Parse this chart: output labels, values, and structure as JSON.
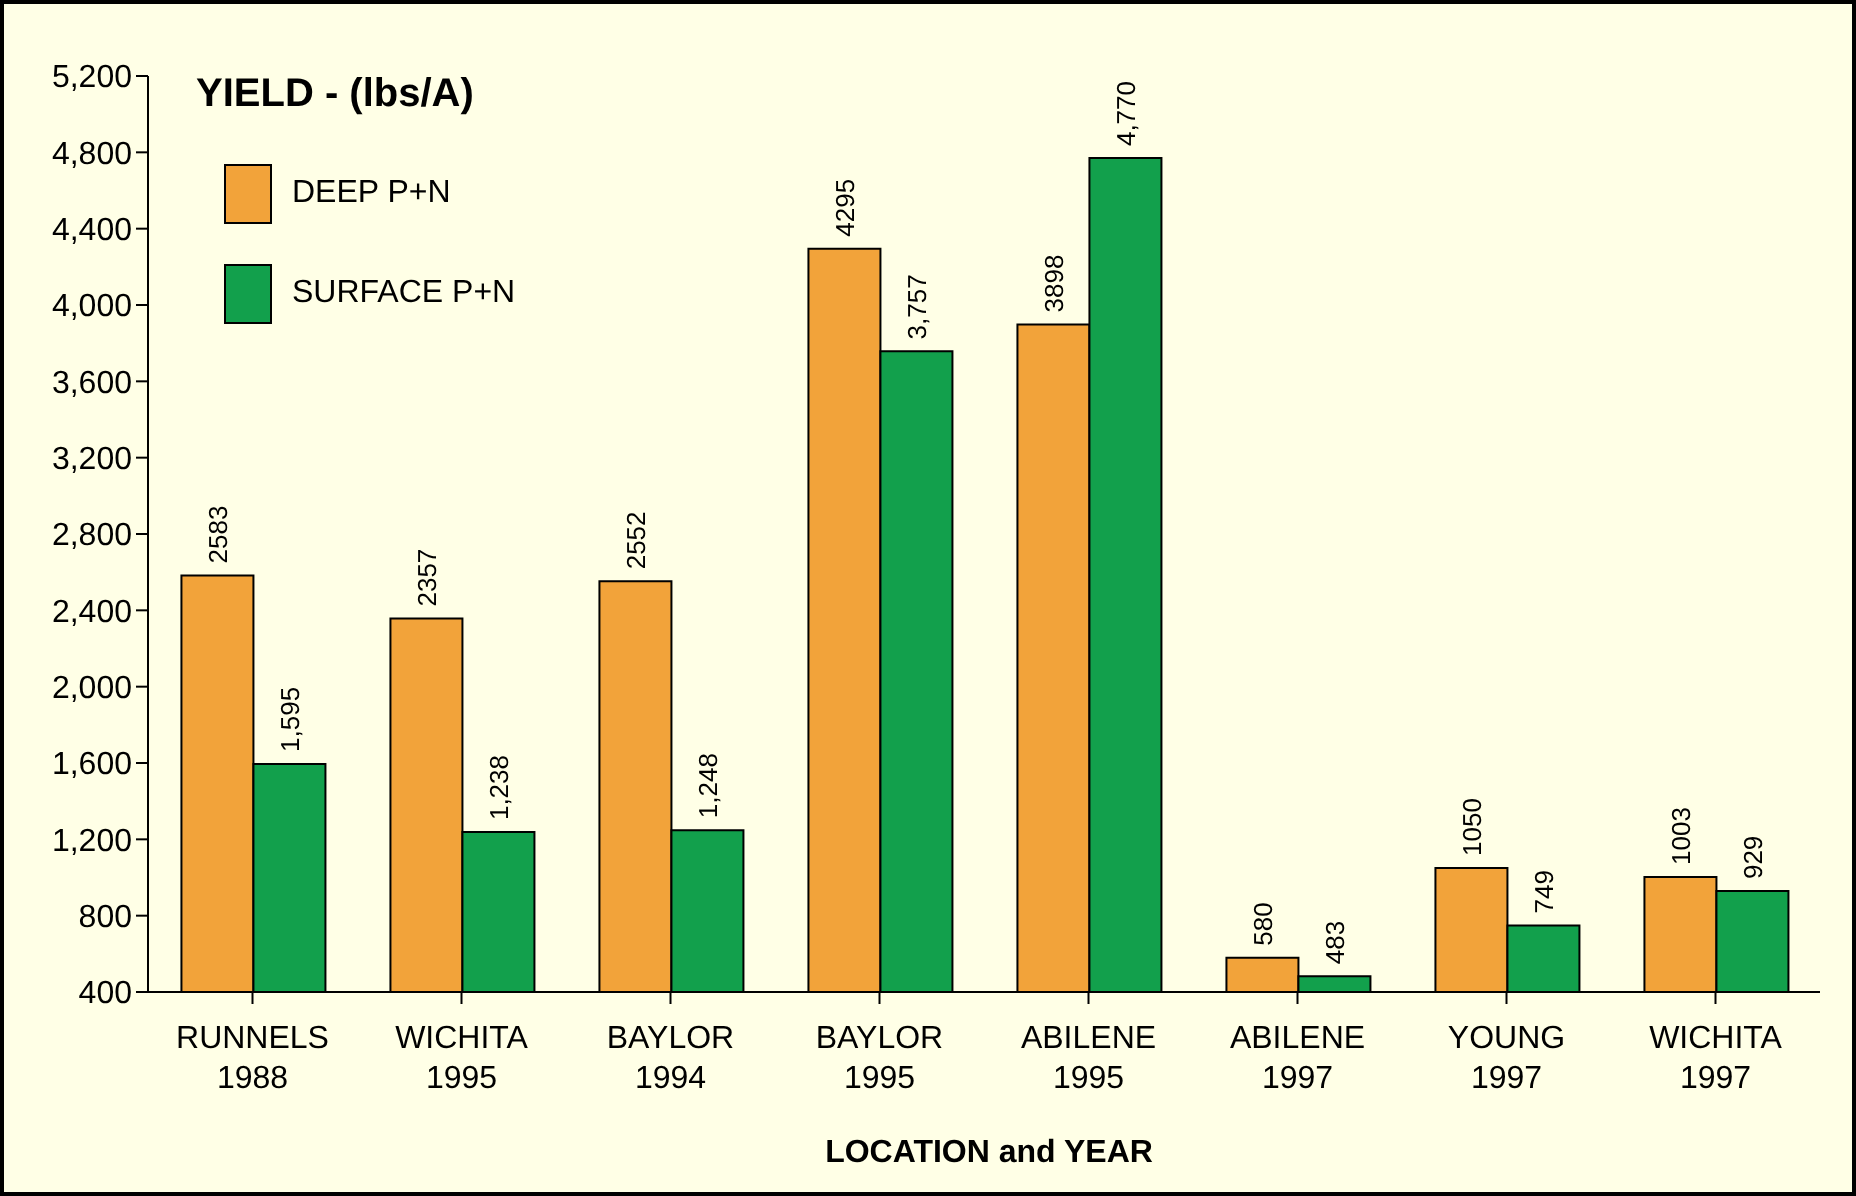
{
  "chart_data": {
    "type": "bar",
    "title": "YIELD - (lbs/A)",
    "xlabel": "LOCATION and YEAR",
    "categories": [
      "RUNNELS\n1988",
      "WICHITA\n1995",
      "BAYLOR\n1994",
      "BAYLOR\n1995",
      "ABILENE\n1995",
      "ABILENE\n1997",
      "YOUNG\n1997",
      "WICHITA\n1997"
    ],
    "series": [
      {
        "name": "DEEP P+N",
        "color": "#f2a33a",
        "values": [
          2583,
          2357,
          2552,
          4295,
          3898,
          580,
          1050,
          1003
        ],
        "value_labels": [
          "2583",
          "2357",
          "2552",
          "4295",
          "3898",
          "580",
          "1050",
          "1003"
        ]
      },
      {
        "name": "SURFACE P+N",
        "color": "#12a04c",
        "values": [
          1595,
          1238,
          1248,
          3757,
          4770,
          483,
          749,
          929
        ],
        "value_labels": [
          "1,595",
          "1,238",
          "1,248",
          "3,757",
          "4,770",
          "483",
          "749",
          "929"
        ]
      }
    ],
    "ylim": [
      400,
      5200
    ],
    "yticks": [
      {
        "value": 400,
        "label": "400"
      },
      {
        "value": 800,
        "label": "800"
      },
      {
        "value": 1200,
        "label": "1,200"
      },
      {
        "value": 1600,
        "label": "1,600"
      },
      {
        "value": 2000,
        "label": "2,000"
      },
      {
        "value": 2400,
        "label": "2,400"
      },
      {
        "value": 2800,
        "label": "2,800"
      },
      {
        "value": 3200,
        "label": "3,200"
      },
      {
        "value": 3600,
        "label": "3,600"
      },
      {
        "value": 4000,
        "label": "4,000"
      },
      {
        "value": 4400,
        "label": "4,400"
      },
      {
        "value": 4800,
        "label": "4,800"
      },
      {
        "value": 5200,
        "label": "5,200"
      }
    ],
    "grid": false,
    "legend": "top left"
  }
}
